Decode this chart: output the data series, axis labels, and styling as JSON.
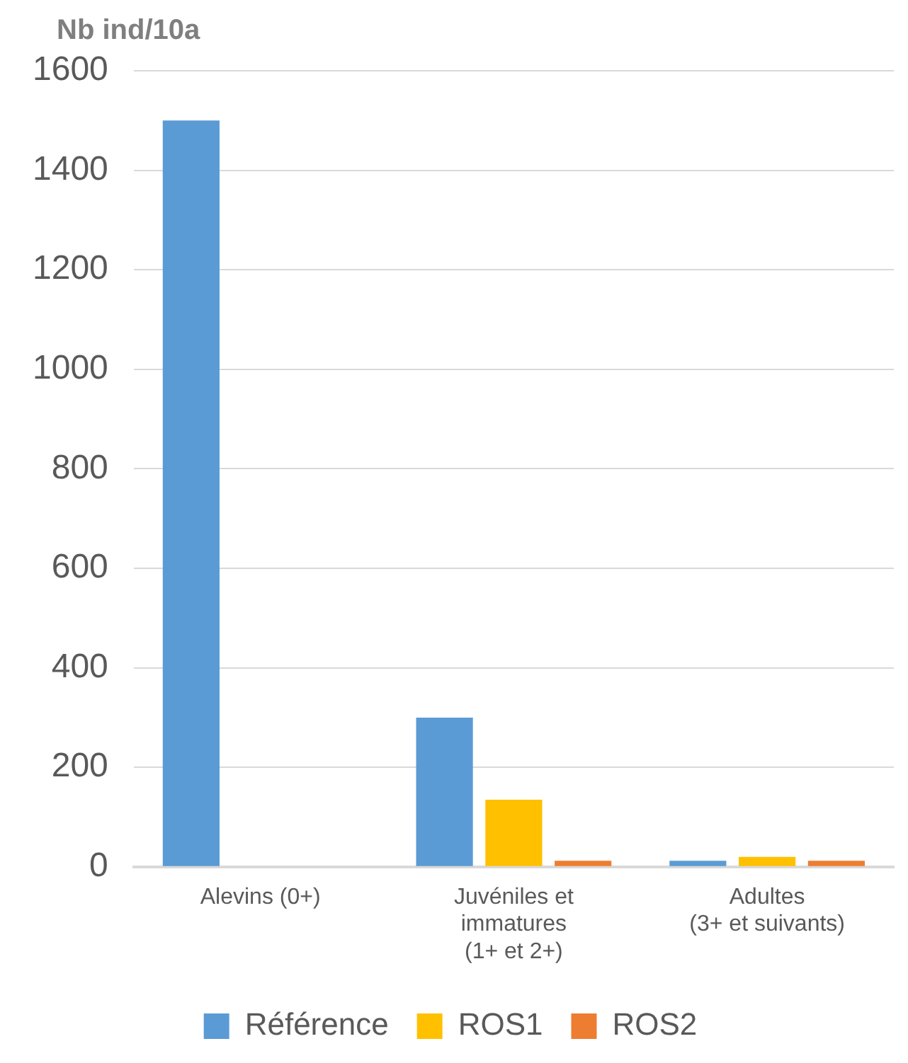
{
  "chart_data": {
    "type": "bar",
    "ylabel": "Nb ind/10a",
    "categories": [
      "Alevins (0+)",
      "Juvéniles et\nimmatures\n(1+ et 2+)",
      "Adultes\n(3+ et suivants)"
    ],
    "series": [
      {
        "name": "Référence",
        "color": "#5b9bd5",
        "values": [
          1500,
          300,
          12
        ]
      },
      {
        "name": "ROS1",
        "color": "#ffc000",
        "values": [
          0,
          135,
          20
        ]
      },
      {
        "name": "ROS2",
        "color": "#ed7d31",
        "values": [
          0,
          12,
          12
        ]
      }
    ],
    "ylim": [
      0,
      1600
    ],
    "yticks": [
      0,
      200,
      400,
      600,
      800,
      1000,
      1200,
      1400,
      1600
    ],
    "grid": "y",
    "legend": "bottom"
  }
}
